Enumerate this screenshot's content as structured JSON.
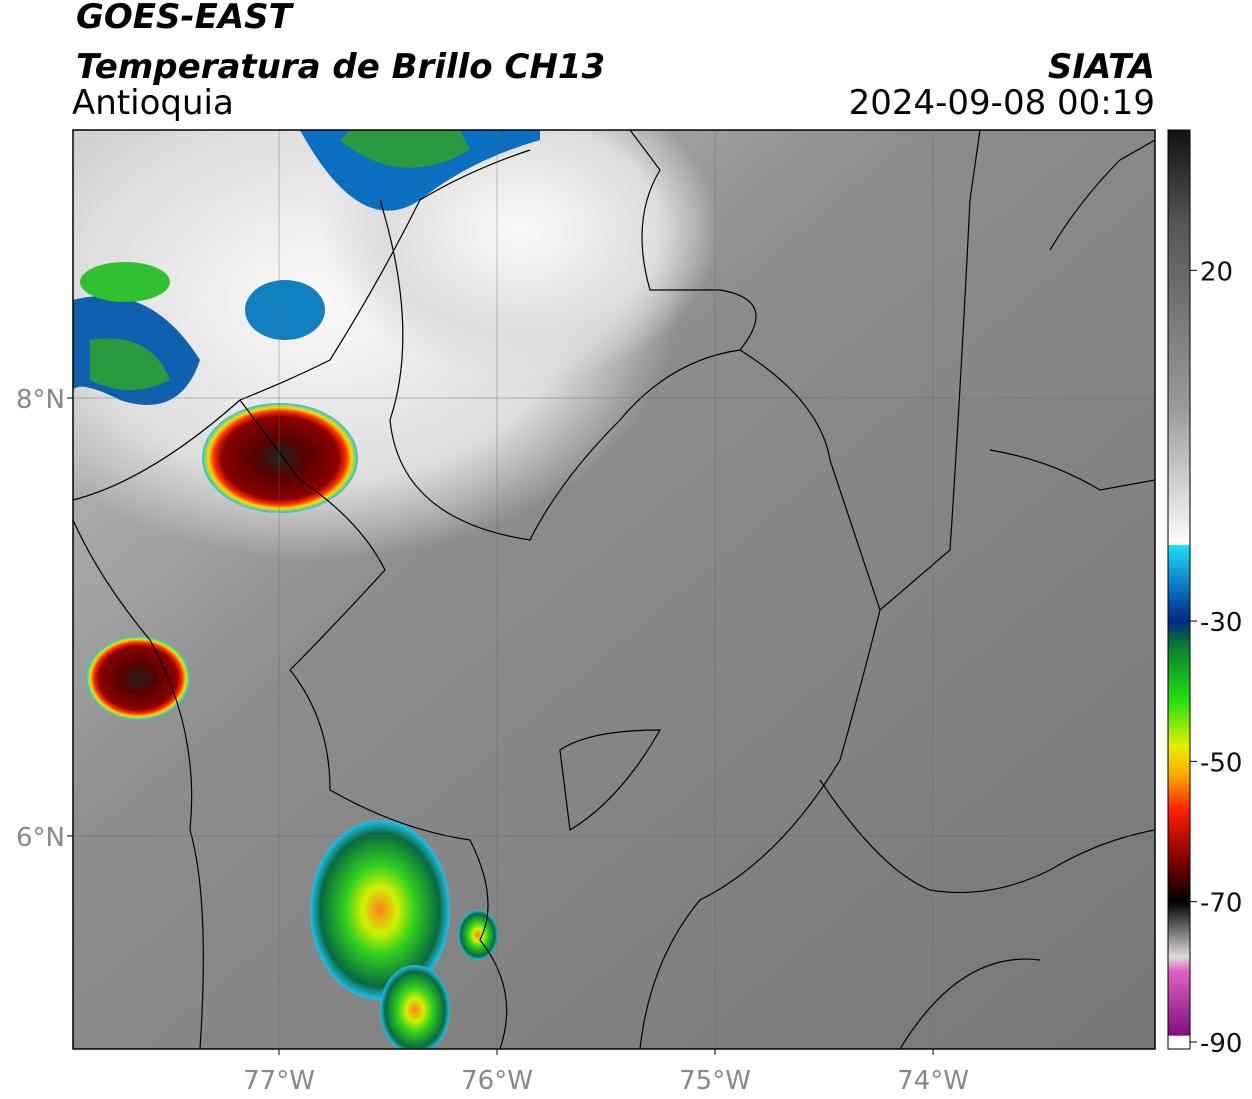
{
  "header": {
    "title": "GOES-EAST",
    "subtitle": "Temperatura de Brillo CH13",
    "region": "Antioquia",
    "source": "SIATA",
    "datetime": "2024-09-08 00:19"
  },
  "map": {
    "type": "map",
    "xlim": [
      -77.945,
      -72.982
    ],
    "ylim": [
      5.027,
      9.224
    ],
    "xticks": [
      {
        "value": -77,
        "label": "77°W"
      },
      {
        "value": -76,
        "label": "76°W"
      },
      {
        "value": -75,
        "label": "75°W"
      },
      {
        "value": -74,
        "label": "74°W"
      }
    ],
    "yticks": [
      {
        "value": 8,
        "label": "8°N"
      },
      {
        "value": 6,
        "label": "6°N"
      }
    ],
    "grid": true
  },
  "colorbar": {
    "lim": [
      -91,
      40
    ],
    "ticks": [
      20,
      -30,
      -50,
      -70,
      -90
    ]
  }
}
